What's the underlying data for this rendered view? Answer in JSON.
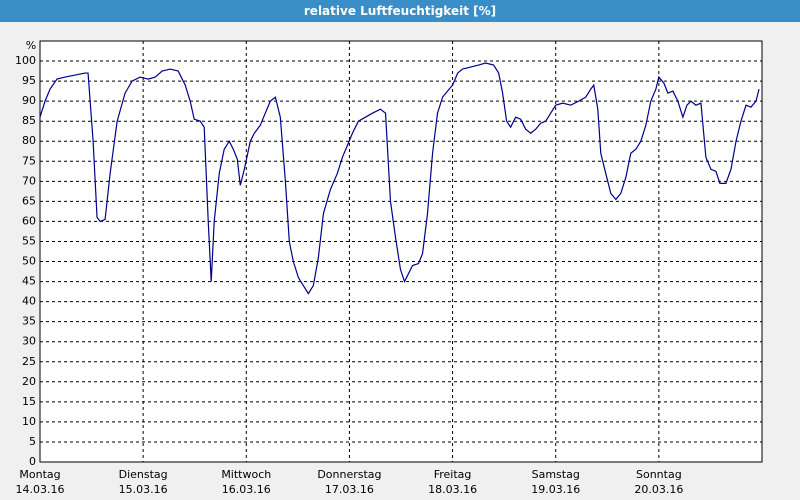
{
  "chart_data": {
    "type": "line",
    "title": "relative Luftfeuchtigkeit [%]",
    "ylabel": "%",
    "xlim": [
      0,
      7
    ],
    "ylim": [
      0,
      105
    ],
    "xticks": [
      {
        "value": 0,
        "label": "Montag"
      },
      {
        "value": 1,
        "label": "Dienstag"
      },
      {
        "value": 2,
        "label": "Mittwoch"
      },
      {
        "value": 3,
        "label": "Donnerstag"
      },
      {
        "value": 4,
        "label": "Freitag"
      },
      {
        "value": 5,
        "label": "Samstag"
      },
      {
        "value": 6,
        "label": "Sonntag"
      }
    ],
    "xtick_dates": [
      "14.03.16",
      "15.03.16",
      "16.03.16",
      "17.03.16",
      "18.03.16",
      "19.03.16",
      "20.03.16"
    ],
    "yticks": [
      0,
      5,
      10,
      15,
      20,
      25,
      30,
      35,
      40,
      45,
      50,
      55,
      60,
      65,
      70,
      75,
      80,
      85,
      90,
      95,
      100
    ],
    "grid": true,
    "color": "#00008b",
    "x": [
      0,
      0.049,
      0.097,
      0.165,
      0.243,
      0.34,
      0.437,
      0.466,
      0.515,
      0.553,
      0.583,
      0.631,
      0.68,
      0.748,
      0.825,
      0.893,
      0.971,
      1.049,
      1.117,
      1.184,
      1.262,
      1.34,
      1.408,
      1.456,
      1.495,
      1.553,
      1.592,
      1.631,
      1.66,
      1.689,
      1.738,
      1.786,
      1.835,
      1.874,
      1.913,
      1.942,
      1.981,
      2.039,
      2.078,
      2.136,
      2.184,
      2.233,
      2.282,
      2.33,
      2.379,
      2.417,
      2.456,
      2.505,
      2.553,
      2.602,
      2.65,
      2.699,
      2.748,
      2.816,
      2.883,
      2.932,
      2.981,
      3.029,
      3.087,
      3.155,
      3.223,
      3.301,
      3.35,
      3.398,
      3.447,
      3.495,
      3.534,
      3.573,
      3.612,
      3.67,
      3.709,
      3.757,
      3.806,
      3.854,
      3.903,
      3.951,
      4.0,
      4.049,
      4.097,
      4.175,
      4.252,
      4.32,
      4.398,
      4.447,
      4.485,
      4.524,
      4.563,
      4.612,
      4.66,
      4.709,
      4.757,
      4.806,
      4.854,
      4.903,
      4.951,
      5.0,
      5.068,
      5.146,
      5.223,
      5.291,
      5.34,
      5.369,
      5.408,
      5.437,
      5.485,
      5.534,
      5.583,
      5.631,
      5.68,
      5.728,
      5.777,
      5.825,
      5.874,
      5.922,
      5.971,
      6.0,
      6.049,
      6.087,
      6.136,
      6.184,
      6.233,
      6.272,
      6.311,
      6.359,
      6.408,
      6.456,
      6.505,
      6.553,
      6.592,
      6.65,
      6.699,
      6.748,
      6.796,
      6.845,
      6.893,
      6.942,
      6.971
    ],
    "values": [
      86,
      90,
      93,
      95.5,
      96,
      96.5,
      97,
      97,
      80,
      61,
      60,
      60.5,
      72,
      85,
      92,
      95,
      96,
      95.5,
      96,
      97.5,
      98,
      97.5,
      94,
      90,
      85.5,
      85,
      83.5,
      60,
      45,
      60,
      72,
      78,
      80,
      78,
      75.5,
      69,
      73,
      80,
      82,
      84,
      87,
      90,
      91,
      86,
      70,
      55,
      50,
      46,
      44,
      42,
      44,
      51,
      62,
      68,
      72,
      76,
      79,
      82,
      85,
      86,
      87,
      88,
      87,
      65,
      56,
      48,
      45,
      47,
      49,
      49.5,
      52,
      62,
      77,
      87,
      91,
      92.5,
      94,
      97,
      98,
      98.5,
      99,
      99.5,
      99,
      97,
      92,
      85,
      83.5,
      86,
      85.5,
      83,
      82,
      83,
      84.5,
      85,
      87,
      89,
      89.5,
      89,
      90,
      91,
      93,
      94,
      88,
      77,
      72,
      67,
      65.5,
      67,
      71,
      77,
      78,
      80,
      84,
      90,
      93,
      96,
      94.5,
      92,
      92.5,
      90,
      86,
      89,
      90,
      89,
      89.5,
      76,
      73,
      72.5,
      69.5,
      69.5,
      73,
      80,
      85,
      89,
      88.5,
      90,
      93
    ]
  }
}
